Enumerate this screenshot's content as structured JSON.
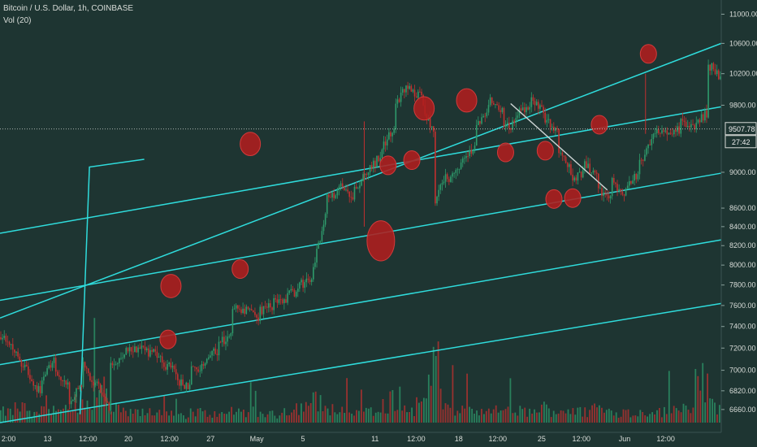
{
  "header": {
    "symbol_line": "Bitcoin / U.S. Dollar, 1h, COINBASE",
    "volume_line": "Vol (20)"
  },
  "colors": {
    "background": "#1e3532",
    "channel": "#2fdcdc",
    "bull": "#2e9a6b",
    "bear": "#c2302f",
    "marker": "#b01e1e",
    "trendline": "#cfd6d6",
    "axis_text": "#d8dcd8"
  },
  "chart_data": {
    "type": "candlestick",
    "title": "Bitcoin / U.S. Dollar, 1h, COINBASE",
    "indicator": "Vol (20)",
    "y_scale": "log",
    "ylim": [
      6550,
      11200
    ],
    "y_ticks": [
      "11000.00",
      "10600.00",
      "10200.00",
      "9800.00",
      "9400.00",
      "9000.00",
      "8600.00",
      "8400.00",
      "8200.00",
      "8000.00",
      "7800.00",
      "7600.00",
      "7400.00",
      "7200.00",
      "7000.00",
      "6820.00",
      "6660.00"
    ],
    "x_ticks": [
      "2:00",
      "13",
      "12:00",
      "20",
      "12:00",
      "27",
      "May",
      "5",
      "11",
      "12:00",
      "18",
      "12:00",
      "25",
      "12:00",
      "Jun",
      "12:00"
    ],
    "last_price": "9507.78",
    "countdown": "27:42",
    "price_path": [
      [
        7300,
        7200
      ],
      [
        7150,
        7000
      ],
      [
        6950,
        6800
      ],
      [
        6900,
        7100
      ],
      [
        7000,
        6850
      ],
      [
        6700,
        6900
      ],
      [
        7050,
        6850
      ],
      [
        6900,
        6650
      ],
      [
        7050,
        7080
      ],
      [
        7150,
        7200
      ],
      [
        7250,
        7150
      ],
      [
        7200,
        7100
      ],
      [
        7050,
        7000
      ],
      [
        6900,
        6850
      ],
      [
        7000,
        7050
      ],
      [
        7100,
        7180
      ],
      [
        7250,
        7300
      ],
      [
        7600,
        7550
      ],
      [
        7550,
        7480
      ],
      [
        7550,
        7600
      ],
      [
        7650,
        7620
      ],
      [
        7700,
        7750
      ],
      [
        7800,
        7850
      ],
      [
        7950,
        8600
      ],
      [
        8700,
        8800
      ],
      [
        8900,
        8700
      ],
      [
        8800,
        9000
      ],
      [
        9000,
        9200
      ],
      [
        9300,
        9500
      ],
      [
        9800,
        10050
      ],
      [
        10000,
        9900
      ],
      [
        9800,
        9450
      ],
      [
        8700,
        9000
      ],
      [
        8900,
        9100
      ],
      [
        9200,
        9300
      ],
      [
        9500,
        9800
      ],
      [
        9900,
        9700
      ],
      [
        9500,
        9600
      ],
      [
        9700,
        9800
      ],
      [
        9900,
        9700
      ],
      [
        9650,
        9500
      ],
      [
        9300,
        9000
      ],
      [
        8900,
        9000
      ],
      [
        9100,
        8950
      ],
      [
        8800,
        8700
      ],
      [
        8900,
        8750
      ],
      [
        8850,
        9000
      ],
      [
        9100,
        9350
      ],
      [
        9400,
        9550
      ],
      [
        9450,
        9500
      ],
      [
        9600,
        9500
      ],
      [
        9550,
        9700
      ],
      [
        10350,
        10150
      ],
      [
        9600,
        9480
      ]
    ],
    "volume_profile": [
      40,
      55,
      30,
      70,
      45,
      35,
      60,
      120,
      50,
      40,
      35,
      45,
      30,
      25,
      40,
      35,
      30,
      45,
      40,
      35,
      30,
      50,
      60,
      80,
      55,
      40,
      35,
      45,
      40,
      90,
      50,
      70,
      200,
      60,
      45,
      40,
      35,
      50,
      45,
      40,
      55,
      45,
      50,
      40,
      60,
      45,
      40,
      35,
      45,
      40,
      50,
      55,
      160,
      60
    ],
    "channel_lines": [
      {
        "points": [
          [
            0,
            7480
          ],
          [
            1,
            10600
          ]
        ]
      },
      {
        "points": [
          [
            0,
            8330
          ],
          [
            1,
            9780
          ]
        ]
      },
      {
        "points": [
          [
            0,
            7650
          ],
          [
            1,
            8990
          ]
        ]
      },
      {
        "points": [
          [
            0,
            7050
          ],
          [
            1,
            8260
          ]
        ]
      },
      {
        "points": [
          [
            0,
            6550
          ],
          [
            1,
            7620
          ]
        ]
      }
    ],
    "trendline": {
      "from": [
        0.708,
        9820
      ],
      "to": [
        0.842,
        8800
      ]
    },
    "markers": [
      {
        "x": 0.347,
        "y": 9330,
        "size": "medium"
      },
      {
        "x": 0.237,
        "y": 7790,
        "size": "medium"
      },
      {
        "x": 0.333,
        "y": 7960,
        "size": "small"
      },
      {
        "x": 0.233,
        "y": 7280,
        "size": "small"
      },
      {
        "x": 0.528,
        "y": 8250,
        "size": "large"
      },
      {
        "x": 0.538,
        "y": 9080,
        "size": "small"
      },
      {
        "x": 0.571,
        "y": 9140,
        "size": "small"
      },
      {
        "x": 0.588,
        "y": 9760,
        "size": "medium"
      },
      {
        "x": 0.647,
        "y": 9860,
        "size": "medium"
      },
      {
        "x": 0.701,
        "y": 9230,
        "size": "small"
      },
      {
        "x": 0.756,
        "y": 9250,
        "size": "small"
      },
      {
        "x": 0.768,
        "y": 8700,
        "size": "small"
      },
      {
        "x": 0.794,
        "y": 8710,
        "size": "small"
      },
      {
        "x": 0.831,
        "y": 9560,
        "size": "small"
      },
      {
        "x": 0.899,
        "y": 10460,
        "size": "small"
      }
    ]
  }
}
